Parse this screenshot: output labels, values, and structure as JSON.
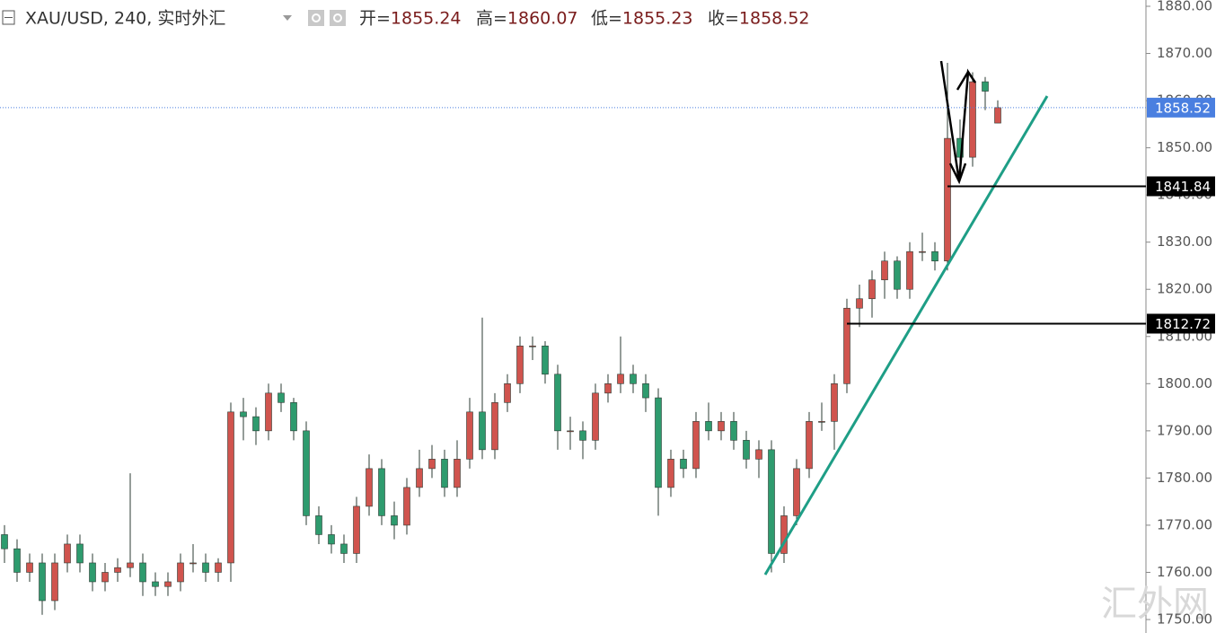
{
  "chart_data": {
    "type": "candlestick",
    "symbol": "XAU/USD, 240, 实时外汇",
    "ohlc_labels": [
      "开=",
      "高=",
      "低=",
      "收="
    ],
    "ohlc_values": [
      1855.24,
      1860.07,
      1855.23,
      1858.52
    ],
    "up_color": "#d0544e",
    "down_color": "#2e9b6e",
    "open": [
      1768,
      1765,
      1760,
      1762,
      1754,
      1762,
      1766,
      1762,
      1758,
      1760,
      1761,
      1762,
      1758,
      1757,
      1758,
      1762,
      1762,
      1760,
      1762,
      1794,
      1793,
      1790,
      1798,
      1796,
      1790,
      1772,
      1768,
      1766,
      1764,
      1774,
      1782,
      1772,
      1770,
      1778,
      1782,
      1784,
      1778,
      1784,
      1794,
      1786,
      1796,
      1800,
      1808,
      1808,
      1802,
      1790,
      1790,
      1788,
      1798,
      1800,
      1802,
      1800,
      1797,
      1778,
      1784,
      1782,
      1792,
      1790,
      1792,
      1788,
      1784,
      1786,
      1764,
      1772,
      1782,
      1792,
      1792,
      1800,
      1816,
      1818,
      1822,
      1826,
      1820,
      1828,
      1828,
      1826,
      1852,
      1848,
      1864,
      1855.24
    ],
    "high": [
      1770,
      1767,
      1764,
      1764,
      1764,
      1768,
      1768,
      1764,
      1762,
      1763,
      1781,
      1764,
      1760,
      1760,
      1764,
      1766,
      1764,
      1763,
      1796,
      1797,
      1795,
      1800,
      1800,
      1797,
      1792,
      1774,
      1770,
      1768,
      1776,
      1785,
      1784,
      1775,
      1780,
      1786,
      1787,
      1786,
      1788,
      1797,
      1814,
      1798,
      1802,
      1810,
      1810,
      1809,
      1804,
      1793,
      1792,
      1800,
      1802,
      1810,
      1804,
      1802,
      1799,
      1786,
      1786,
      1794,
      1796,
      1794,
      1794,
      1790,
      1788,
      1788,
      1774,
      1784,
      1794,
      1796,
      1802,
      1818,
      1821,
      1824,
      1828,
      1827,
      1830,
      1832,
      1830,
      1868,
      1856,
      1866,
      1865,
      1860.07
    ],
    "low": [
      1762,
      1758,
      1758,
      1751,
      1752,
      1760,
      1760,
      1756,
      1756,
      1758,
      1759,
      1755,
      1755,
      1755,
      1756,
      1760,
      1758,
      1758,
      1758,
      1788,
      1787,
      1788,
      1794,
      1788,
      1770,
      1766,
      1764,
      1762,
      1762,
      1772,
      1770,
      1767,
      1768,
      1776,
      1780,
      1776,
      1776,
      1782,
      1784,
      1784,
      1794,
      1798,
      1805,
      1800,
      1786,
      1786,
      1784,
      1786,
      1796,
      1798,
      1798,
      1794,
      1772,
      1776,
      1780,
      1780,
      1788,
      1788,
      1786,
      1782,
      1780,
      1760,
      1762,
      1770,
      1780,
      1790,
      1786,
      1798,
      1812,
      1814,
      1818,
      1818,
      1818,
      1826,
      1824,
      1824,
      1845,
      1846,
      1858,
      1855.23
    ],
    "close": [
      1765,
      1760,
      1762,
      1754,
      1762,
      1766,
      1762,
      1758,
      1760,
      1761,
      1762,
      1758,
      1757,
      1758,
      1762,
      1762,
      1760,
      1762,
      1794,
      1793,
      1790,
      1798,
      1796,
      1790,
      1772,
      1768,
      1766,
      1764,
      1774,
      1782,
      1772,
      1770,
      1778,
      1782,
      1784,
      1778,
      1784,
      1794,
      1786,
      1796,
      1800,
      1808,
      1808,
      1802,
      1790,
      1790,
      1788,
      1798,
      1800,
      1802,
      1800,
      1797,
      1778,
      1784,
      1782,
      1792,
      1790,
      1792,
      1788,
      1784,
      1786,
      1764,
      1772,
      1782,
      1792,
      1792,
      1800,
      1816,
      1818,
      1822,
      1826,
      1820,
      1828,
      1828,
      1826,
      1852,
      1848,
      1864,
      1862,
      1858.52
    ],
    "ylim": [
      1750,
      1880
    ],
    "yticks": [
      {
        "value": 1750,
        "label": "1750.00"
      },
      {
        "value": 1760,
        "label": "1760.00"
      },
      {
        "value": 1770,
        "label": "1770.00"
      },
      {
        "value": 1780,
        "label": "1780.00"
      },
      {
        "value": 1790,
        "label": "1790.00"
      },
      {
        "value": 1800,
        "label": "1800.00"
      },
      {
        "value": 1810,
        "label": "1810.00"
      },
      {
        "value": 1820,
        "label": "1820.00"
      },
      {
        "value": 1830,
        "label": "1830.00"
      },
      {
        "value": 1840,
        "label": "1840.00"
      },
      {
        "value": 1850,
        "label": "1850.00"
      },
      {
        "value": 1860,
        "label": "1860.00"
      },
      {
        "value": 1870,
        "label": "1870.00"
      },
      {
        "value": 1880,
        "label": "1880.00"
      }
    ],
    "last_price": {
      "value": 1858.52,
      "color": "#4a7fe0"
    },
    "levels": [
      {
        "value": 1841.84,
        "color": "#000000",
        "start_index": 75
      },
      {
        "value": 1812.72,
        "color": "#000000",
        "start_index": 67
      }
    ],
    "watermark": "汇外网"
  }
}
